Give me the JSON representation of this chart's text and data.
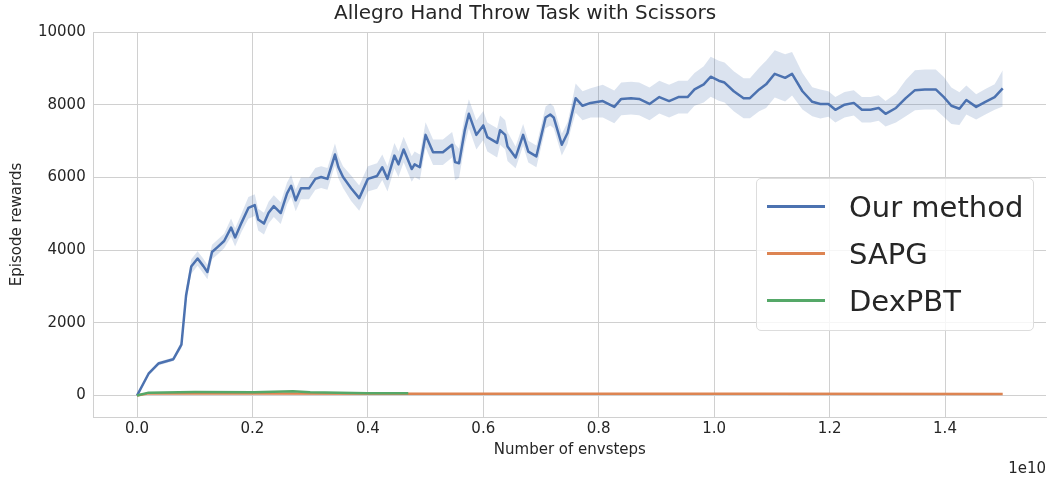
{
  "chart_data": {
    "type": "line",
    "title": "Allegro Hand Throw Task with Scissors",
    "xlabel": "Number of envsteps",
    "ylabel": "Episode rewards",
    "xlim": [
      -0.075,
      1.575
    ],
    "ylim": [
      -590,
      10000
    ],
    "xticks": [
      {
        "value": 0,
        "label": "0.0"
      },
      {
        "value": 0.2,
        "label": "0.2"
      },
      {
        "value": 0.4,
        "label": "0.4"
      },
      {
        "value": 0.6,
        "label": "0.6"
      },
      {
        "value": 0.8,
        "label": "0.8"
      },
      {
        "value": 1,
        "label": "1.0"
      },
      {
        "value": 1.2,
        "label": "1.2"
      },
      {
        "value": 1.4,
        "label": "1.4"
      }
    ],
    "yticks": [
      0,
      2000,
      4000,
      6000,
      8000,
      10000
    ],
    "grid": true,
    "legend": "right",
    "marker": "none",
    "line_style": "solid",
    "annotations": [
      "1e10"
    ],
    "series": [
      {
        "name": "Our method",
        "color": "#4c72b0",
        "x": [
          0,
          0.02,
          0.037,
          0.063,
          0.077,
          0.085,
          0.094,
          0.105,
          0.115,
          0.122,
          0.13,
          0.14,
          0.151,
          0.163,
          0.17,
          0.181,
          0.193,
          0.204,
          0.21,
          0.22,
          0.228,
          0.237,
          0.249,
          0.26,
          0.267,
          0.275,
          0.284,
          0.298,
          0.309,
          0.319,
          0.33,
          0.343,
          0.349,
          0.357,
          0.371,
          0.385,
          0.4,
          0.416,
          0.425,
          0.434,
          0.446,
          0.453,
          0.462,
          0.476,
          0.481,
          0.49,
          0.5,
          0.513,
          0.53,
          0.546,
          0.551,
          0.558,
          0.568,
          0.575,
          0.588,
          0.6,
          0.607,
          0.624,
          0.629,
          0.638,
          0.642,
          0.656,
          0.669,
          0.678,
          0.692,
          0.708,
          0.716,
          0.722,
          0.736,
          0.746,
          0.751,
          0.76,
          0.772,
          0.786,
          0.807,
          0.827,
          0.839,
          0.856,
          0.87,
          0.888,
          0.905,
          0.922,
          0.938,
          0.954,
          0.966,
          0.982,
          0.994,
          1.008,
          1.018,
          1.034,
          1.051,
          1.062,
          1.078,
          1.09,
          1.105,
          1.123,
          1.135,
          1.153,
          1.17,
          1.184,
          1.198,
          1.21,
          1.226,
          1.242,
          1.256,
          1.271,
          1.285,
          1.297,
          1.315,
          1.332,
          1.348,
          1.365,
          1.384,
          1.398,
          1.411,
          1.425,
          1.437,
          1.454,
          1.47,
          1.486,
          1.5
        ],
        "values": [
          0,
          600,
          880,
          1000,
          1400,
          2750,
          3550,
          3770,
          3560,
          3400,
          3950,
          4090,
          4250,
          4620,
          4350,
          4750,
          5160,
          5240,
          4840,
          4730,
          5030,
          5210,
          5020,
          5560,
          5770,
          5370,
          5700,
          5700,
          5960,
          6010,
          5960,
          6630,
          6280,
          6010,
          5700,
          5430,
          5960,
          6040,
          6280,
          5960,
          6600,
          6360,
          6770,
          6230,
          6360,
          6280,
          7170,
          6690,
          6690,
          6900,
          6420,
          6390,
          7300,
          7750,
          7170,
          7430,
          7110,
          6950,
          7300,
          7170,
          6850,
          6550,
          7170,
          6710,
          6580,
          7650,
          7730,
          7650,
          6900,
          7220,
          7570,
          8180,
          7970,
          8050,
          8100,
          7940,
          8160,
          8180,
          8160,
          8020,
          8210,
          8100,
          8210,
          8210,
          8420,
          8560,
          8770,
          8660,
          8610,
          8370,
          8180,
          8180,
          8420,
          8560,
          8850,
          8740,
          8850,
          8370,
          8080,
          8020,
          8020,
          7860,
          8000,
          8050,
          7860,
          7860,
          7910,
          7750,
          7910,
          8180,
          8400,
          8420,
          8420,
          8210,
          7970,
          7890,
          8130,
          7940,
          8080,
          8210,
          8450
        ],
        "lower": [
          0,
          550,
          830,
          950,
          1300,
          2550,
          3350,
          3570,
          3360,
          3200,
          3750,
          3890,
          4050,
          4370,
          4100,
          4500,
          4860,
          4940,
          4540,
          4430,
          4730,
          4910,
          4720,
          5260,
          5470,
          5070,
          5400,
          5400,
          5660,
          5710,
          5660,
          6330,
          5980,
          5710,
          5350,
          5080,
          5610,
          5690,
          5930,
          5610,
          6250,
          6010,
          6420,
          5880,
          6010,
          5930,
          6820,
          6340,
          6340,
          6550,
          5920,
          5990,
          6900,
          7350,
          6770,
          7030,
          6710,
          6550,
          6900,
          6770,
          6450,
          6250,
          6870,
          6410,
          6280,
          7350,
          7430,
          7350,
          6600,
          6920,
          7270,
          7780,
          7570,
          7650,
          7650,
          7490,
          7710,
          7730,
          7710,
          7570,
          7760,
          7650,
          7760,
          7760,
          7970,
          8060,
          8220,
          8110,
          8060,
          7820,
          7630,
          7630,
          7820,
          7910,
          8200,
          8090,
          8250,
          7870,
          7680,
          7620,
          7670,
          7510,
          7650,
          7700,
          7510,
          7510,
          7560,
          7400,
          7510,
          7680,
          7850,
          7870,
          7870,
          7660,
          7470,
          7440,
          7730,
          7590,
          7730,
          7860,
          7950
        ],
        "upper": [
          0,
          650,
          930,
          1050,
          1500,
          2950,
          3750,
          3970,
          3760,
          3600,
          4150,
          4290,
          4450,
          4870,
          4600,
          5000,
          5460,
          5540,
          5140,
          5030,
          5330,
          5510,
          5320,
          5860,
          6070,
          5670,
          6000,
          6000,
          6260,
          6310,
          6260,
          6930,
          6580,
          6310,
          6050,
          5780,
          6310,
          6390,
          6630,
          6310,
          6950,
          6710,
          7120,
          6580,
          6710,
          6630,
          7520,
          7040,
          7040,
          7250,
          6920,
          6790,
          7700,
          8150,
          7570,
          7830,
          7510,
          7350,
          7700,
          7570,
          7250,
          6850,
          7470,
          7010,
          6880,
          7950,
          8030,
          7950,
          7200,
          7520,
          7870,
          8580,
          8370,
          8450,
          8550,
          8390,
          8610,
          8630,
          8610,
          8470,
          8660,
          8550,
          8660,
          8660,
          8870,
          9060,
          9320,
          9210,
          9160,
          8920,
          8730,
          8730,
          9020,
          9210,
          9500,
          9390,
          9450,
          8870,
          8480,
          8420,
          8370,
          8210,
          8350,
          8400,
          8210,
          8210,
          8260,
          8100,
          8310,
          8680,
          8950,
          8970,
          8970,
          8760,
          8470,
          8340,
          8530,
          8290,
          8430,
          8560,
          8950
        ]
      },
      {
        "name": "SAPG",
        "color": "#dd8452",
        "x": [
          0,
          0.02,
          0.5,
          1,
          1.5
        ],
        "values": [
          0,
          60,
          50,
          50,
          40
        ]
      },
      {
        "name": "DexPBT",
        "color": "#55a868",
        "x": [
          0,
          0.02,
          0.1,
          0.2,
          0.27,
          0.3,
          0.4,
          0.47
        ],
        "values": [
          0,
          80,
          100,
          90,
          120,
          90,
          60,
          60
        ]
      }
    ]
  }
}
